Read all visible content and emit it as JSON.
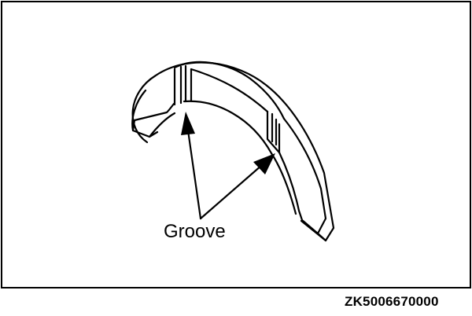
{
  "diagram": {
    "callout_label": "Groove",
    "figure_code": "ZK5006670000",
    "line_color": "#000000",
    "background_color": "#ffffff",
    "part": "thrust-bearing-half",
    "arrow_count": 2
  }
}
